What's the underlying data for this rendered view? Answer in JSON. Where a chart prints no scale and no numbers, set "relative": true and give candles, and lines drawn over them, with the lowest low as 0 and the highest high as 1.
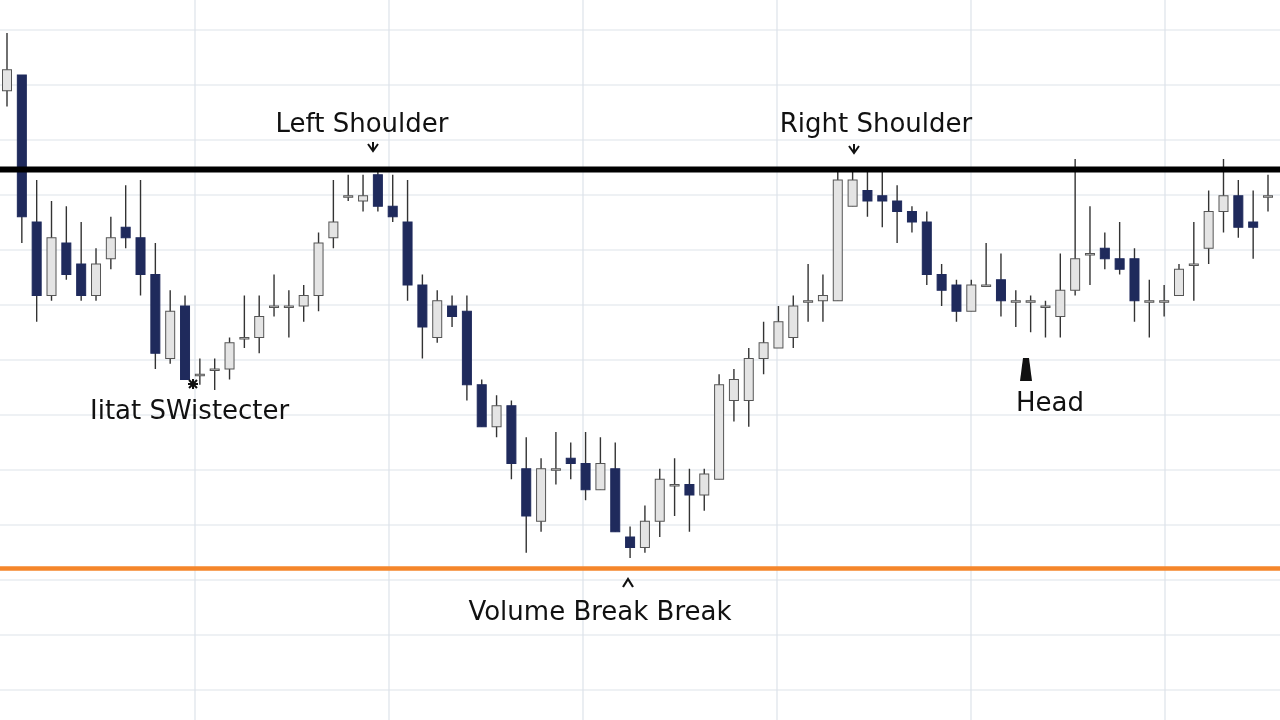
{
  "chart_data": {
    "type": "candlestick",
    "relative": true,
    "grid": true,
    "categories": [
      null,
      null,
      null,
      null,
      null,
      null,
      null,
      null,
      null,
      null,
      null,
      null,
      null,
      null,
      null,
      null,
      null,
      null,
      null,
      null,
      null,
      null,
      null,
      null,
      null,
      null,
      null,
      null,
      null,
      null,
      null,
      null,
      null,
      null,
      null,
      null,
      null,
      null,
      null,
      null,
      null,
      null,
      null,
      null,
      null,
      null,
      null,
      null,
      null,
      null,
      null,
      null,
      null,
      null,
      null,
      null,
      null,
      null,
      null,
      null,
      null,
      null,
      null,
      null,
      null,
      null,
      null,
      null,
      null,
      null,
      null,
      null,
      null,
      null,
      null,
      null,
      null,
      null,
      null,
      null,
      null,
      null,
      null,
      null,
      null,
      null
    ],
    "ohlc": [
      [
        0.89,
        1,
        0.86,
        0.93
      ],
      [
        0.92,
        0.92,
        0.6,
        0.65
      ],
      [
        0.64,
        0.72,
        0.45,
        0.5
      ],
      [
        0.5,
        0.68,
        0.49,
        0.61
      ],
      [
        0.6,
        0.67,
        0.53,
        0.54
      ],
      [
        0.56,
        0.64,
        0.49,
        0.5
      ],
      [
        0.5,
        0.59,
        0.49,
        0.56
      ],
      [
        0.57,
        0.65,
        0.55,
        0.61
      ],
      [
        0.63,
        0.71,
        0.59,
        0.61
      ],
      [
        0.61,
        0.72,
        0.5,
        0.54
      ],
      [
        0.54,
        0.6,
        0.36,
        0.39
      ],
      [
        0.38,
        0.51,
        0.37,
        0.47
      ],
      [
        0.48,
        0.5,
        0.34,
        0.34
      ],
      [
        0.35,
        0.38,
        0.33,
        0.35
      ],
      [
        0.36,
        0.38,
        0.32,
        0.36
      ],
      [
        0.36,
        0.42,
        0.34,
        0.41
      ],
      [
        0.42,
        0.5,
        0.4,
        0.42
      ],
      [
        0.42,
        0.5,
        0.39,
        0.46
      ],
      [
        0.48,
        0.54,
        0.46,
        0.48
      ],
      [
        0.48,
        0.51,
        0.42,
        0.48
      ],
      [
        0.48,
        0.52,
        0.45,
        0.5
      ],
      [
        0.5,
        0.62,
        0.47,
        0.6
      ],
      [
        0.61,
        0.72,
        0.59,
        0.64
      ],
      [
        0.69,
        0.73,
        0.68,
        0.69
      ],
      [
        0.68,
        0.73,
        0.66,
        0.69
      ],
      [
        0.73,
        0.74,
        0.66,
        0.67
      ],
      [
        0.67,
        0.73,
        0.64,
        0.65
      ],
      [
        0.64,
        0.72,
        0.49,
        0.52
      ],
      [
        0.52,
        0.54,
        0.38,
        0.44
      ],
      [
        0.42,
        0.51,
        0.41,
        0.49
      ],
      [
        0.48,
        0.5,
        0.44,
        0.46
      ],
      [
        0.47,
        0.5,
        0.3,
        0.33
      ],
      [
        0.33,
        0.34,
        0.25,
        0.25
      ],
      [
        0.25,
        0.31,
        0.23,
        0.29
      ],
      [
        0.29,
        0.3,
        0.15,
        0.18
      ],
      [
        0.17,
        0.23,
        0.01,
        0.08
      ],
      [
        0.07,
        0.19,
        0.05,
        0.17
      ],
      [
        0.17,
        0.24,
        0.14,
        0.17
      ],
      [
        0.19,
        0.22,
        0.15,
        0.18
      ],
      [
        0.18,
        0.24,
        0.11,
        0.13
      ],
      [
        0.13,
        0.23,
        0.13,
        0.18
      ],
      [
        0.17,
        0.22,
        0.05,
        0.05
      ],
      [
        0.04,
        0.06,
        0,
        0.02
      ],
      [
        0.02,
        0.1,
        0.01,
        0.07
      ],
      [
        0.07,
        0.17,
        0.04,
        0.15
      ],
      [
        0.14,
        0.19,
        0.08,
        0.14
      ],
      [
        0.14,
        0.17,
        0.05,
        0.12
      ],
      [
        0.12,
        0.17,
        0.09,
        0.16
      ],
      [
        0.15,
        0.35,
        0.15,
        0.33
      ],
      [
        0.3,
        0.36,
        0.26,
        0.34
      ],
      [
        0.3,
        0.4,
        0.25,
        0.38
      ],
      [
        0.38,
        0.45,
        0.35,
        0.41
      ],
      [
        0.4,
        0.48,
        0.4,
        0.45
      ],
      [
        0.42,
        0.5,
        0.4,
        0.48
      ],
      [
        0.49,
        0.56,
        0.45,
        0.49
      ],
      [
        0.49,
        0.54,
        0.45,
        0.5
      ],
      [
        0.49,
        0.74,
        0.49,
        0.72
      ],
      [
        0.67,
        0.74,
        0.67,
        0.72
      ],
      [
        0.7,
        0.74,
        0.65,
        0.68
      ],
      [
        0.69,
        0.74,
        0.63,
        0.68
      ],
      [
        0.68,
        0.71,
        0.6,
        0.66
      ],
      [
        0.66,
        0.67,
        0.62,
        0.64
      ],
      [
        0.64,
        0.66,
        0.52,
        0.54
      ],
      [
        0.54,
        0.56,
        0.48,
        0.51
      ],
      [
        0.52,
        0.53,
        0.45,
        0.47
      ],
      [
        0.47,
        0.53,
        0.47,
        0.52
      ],
      [
        0.52,
        0.6,
        0.52,
        0.52
      ],
      [
        0.53,
        0.58,
        0.46,
        0.49
      ],
      [
        0.49,
        0.51,
        0.44,
        0.49
      ],
      [
        0.49,
        0.5,
        0.43,
        0.49
      ],
      [
        0.48,
        0.49,
        0.42,
        0.48
      ],
      [
        0.46,
        0.58,
        0.42,
        0.51
      ],
      [
        0.51,
        0.76,
        0.5,
        0.57
      ],
      [
        0.58,
        0.67,
        0.52,
        0.58
      ],
      [
        0.59,
        0.62,
        0.55,
        0.57
      ],
      [
        0.57,
        0.64,
        0.54,
        0.55
      ],
      [
        0.57,
        0.59,
        0.45,
        0.49
      ],
      [
        0.49,
        0.53,
        0.42,
        0.49
      ],
      [
        0.49,
        0.52,
        0.46,
        0.49
      ],
      [
        0.5,
        0.56,
        0.5,
        0.55
      ],
      [
        0.56,
        0.64,
        0.49,
        0.56
      ],
      [
        0.59,
        0.7,
        0.56,
        0.66
      ],
      [
        0.66,
        0.76,
        0.62,
        0.69
      ],
      [
        0.69,
        0.72,
        0.61,
        0.63
      ],
      [
        0.64,
        0.7,
        0.57,
        0.63
      ],
      [
        0.69,
        0.73,
        0.66,
        0.69
      ]
    ],
    "ref_lines": [
      {
        "axis": "y",
        "value": 0.74,
        "color": "#000000"
      },
      {
        "axis": "y",
        "value": -0.02,
        "color": "#f5862b"
      }
    ],
    "annotations": [
      "Left Shoulder",
      "Right Shoulder",
      "Head",
      "Volume Break  Break",
      "Iitat SWistecter"
    ]
  }
}
